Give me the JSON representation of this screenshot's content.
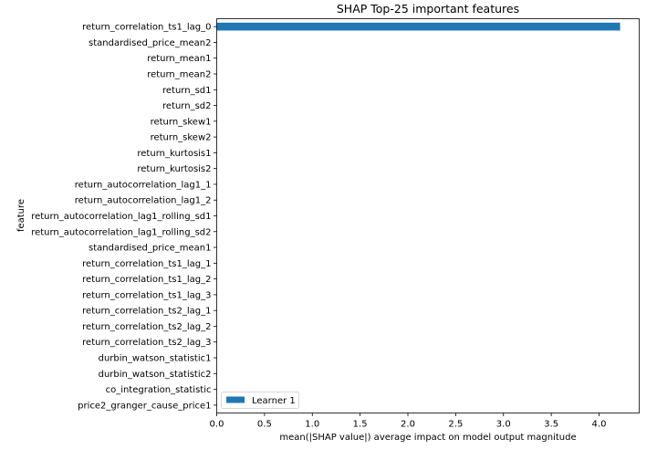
{
  "chart_data": {
    "type": "bar",
    "orientation": "horizontal",
    "title": "SHAP Top-25 important features",
    "xlabel": "mean(|SHAP value|) average impact on model output magnitude",
    "ylabel": "feature",
    "xlim": [
      0,
      4.42
    ],
    "xticks": [
      0.0,
      0.5,
      1.0,
      1.5,
      2.0,
      2.5,
      3.0,
      3.5,
      4.0
    ],
    "xtick_labels": [
      "0.0",
      "0.5",
      "1.0",
      "1.5",
      "2.0",
      "2.5",
      "3.0",
      "3.5",
      "4.0"
    ],
    "categories": [
      "return_correlation_ts1_lag_0",
      "standardised_price_mean2",
      "return_mean1",
      "return_mean2",
      "return_sd1",
      "return_sd2",
      "return_skew1",
      "return_skew2",
      "return_kurtosis1",
      "return_kurtosis2",
      "return_autocorrelation_lag1_1",
      "return_autocorrelation_lag1_2",
      "return_autocorrelation_lag1_rolling_sd1",
      "return_autocorrelation_lag1_rolling_sd2",
      "standardised_price_mean1",
      "return_correlation_ts1_lag_1",
      "return_correlation_ts1_lag_2",
      "return_correlation_ts1_lag_3",
      "return_correlation_ts2_lag_1",
      "return_correlation_ts2_lag_2",
      "return_correlation_ts2_lag_3",
      "durbin_watson_statistic1",
      "durbin_watson_statistic2",
      "co_integration_statistic",
      "price2_granger_cause_price1"
    ],
    "series": [
      {
        "name": "Learner 1",
        "color": "#1f77b4",
        "values": [
          4.22,
          0,
          0,
          0,
          0,
          0,
          0,
          0,
          0,
          0,
          0,
          0,
          0,
          0,
          0,
          0,
          0,
          0,
          0,
          0,
          0,
          0,
          0,
          0,
          0
        ]
      }
    ],
    "legend_position": "lower-left",
    "grid": false
  }
}
